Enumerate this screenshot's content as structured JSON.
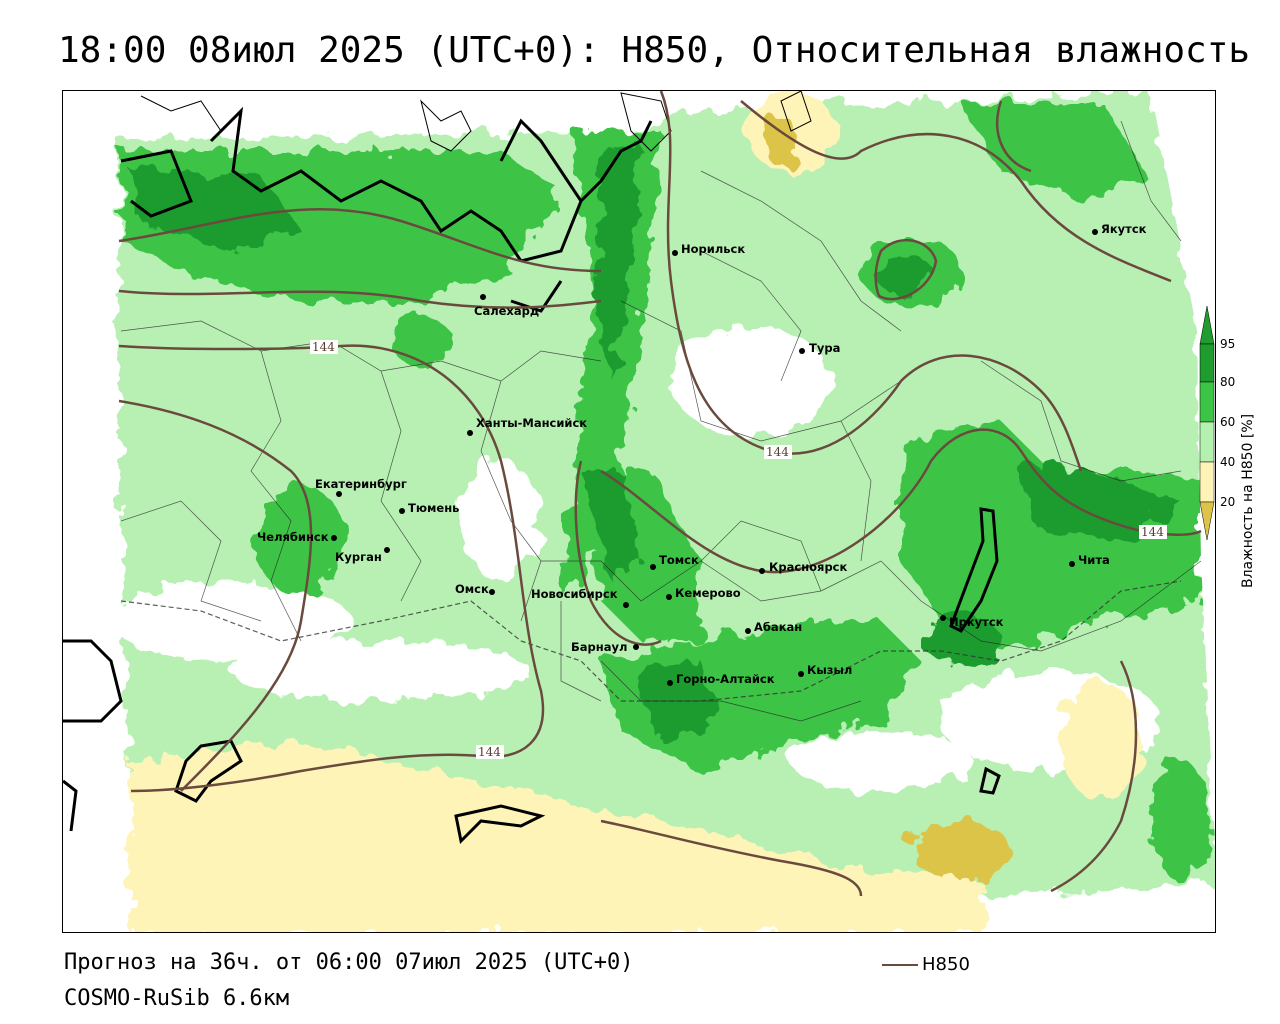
{
  "title": "18:00 08июл 2025 (UTC+0): H850, Относительная влажность",
  "footer": {
    "forecast": "Прогноз на 36ч. от 06:00 07июл 2025 (UTC+0)",
    "model": "COSMO-RuSib 6.6км"
  },
  "legend": {
    "line_label": "H850",
    "line_color": "#6b4a3e"
  },
  "scale": {
    "title": "Влажность на H850 [%]",
    "ticks": [
      "95",
      "80",
      "60",
      "40",
      "20"
    ],
    "colors": {
      "very_high": "#1e9c2e",
      "high": "#3cc447",
      "mid": "#b4f0b0",
      "low_mid": "#ffffff",
      "low": "#fff4b8",
      "very_low": "#dcc44a"
    }
  },
  "isolines": {
    "labels": [
      "144",
      "144",
      "144",
      "144"
    ]
  },
  "cities": [
    {
      "name": "Якутск"
    },
    {
      "name": "Норильск"
    },
    {
      "name": "Салехард"
    },
    {
      "name": "Тура"
    },
    {
      "name": "Ханты-Мансийск"
    },
    {
      "name": "Екатеринбург"
    },
    {
      "name": "Тюмень"
    },
    {
      "name": "Челябинск"
    },
    {
      "name": "Курган"
    },
    {
      "name": "Омск"
    },
    {
      "name": "Томск"
    },
    {
      "name": "Новосибирск"
    },
    {
      "name": "Кемерово"
    },
    {
      "name": "Красноярск"
    },
    {
      "name": "Барнаул"
    },
    {
      "name": "Абакан"
    },
    {
      "name": "Горно-Алтайск"
    },
    {
      "name": "Кызыл"
    },
    {
      "name": "Иркутск"
    },
    {
      "name": "Чита"
    }
  ]
}
